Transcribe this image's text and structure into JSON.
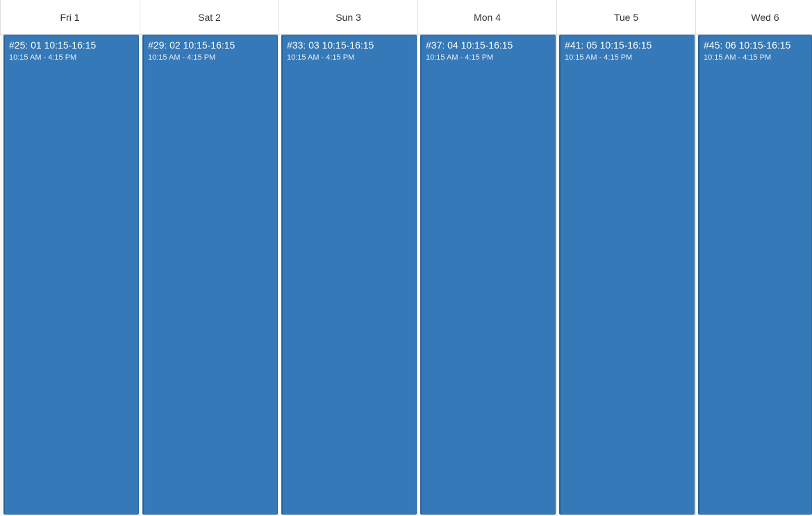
{
  "days": [
    {
      "header": "Fri 1",
      "event": {
        "title": "#25: 01 10:15-16:15",
        "time": "10:15 AM - 4:15 PM"
      }
    },
    {
      "header": "Sat 2",
      "event": {
        "title": "#29: 02 10:15-16:15",
        "time": "10:15 AM - 4:15 PM"
      }
    },
    {
      "header": "Sun 3",
      "event": {
        "title": "#33: 03 10:15-16:15",
        "time": "10:15 AM - 4:15 PM"
      }
    },
    {
      "header": "Mon 4",
      "event": {
        "title": "#37: 04 10:15-16:15",
        "time": "10:15 AM - 4:15 PM"
      }
    },
    {
      "header": "Tue 5",
      "event": {
        "title": "#41: 05 10:15-16:15",
        "time": "10:15 AM - 4:15 PM"
      }
    },
    {
      "header": "Wed 6",
      "event": {
        "title": "#45: 06 10:15-16:15",
        "time": "10:15 AM - 4:15 PM"
      }
    }
  ],
  "colors": {
    "event_bg": "#3579b8",
    "grid_line": "#dddddd",
    "header_text": "#333333"
  }
}
